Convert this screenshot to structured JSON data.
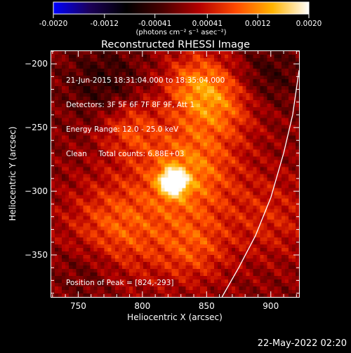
{
  "colorbar": {
    "ticks": [
      "-0.0020",
      "-0.0012",
      "-0.00041",
      "0.00041",
      "0.0012",
      "0.0020"
    ],
    "tick_values": [
      -0.002,
      -0.0012,
      -0.00041,
      0.00041,
      0.0012,
      0.002
    ],
    "units": "(photons cm⁻² s⁻¹ asec⁻²)",
    "colormap_stops": [
      "#0000ff",
      "#1b0058",
      "#000000",
      "#4a0000",
      "#b40000",
      "#ff4a00",
      "#ffb400",
      "#ffffff"
    ]
  },
  "chart_data": {
    "type": "heatmap",
    "title": "Reconstructed RHESSI Image",
    "xlabel": "Heliocentric X (arcsec)",
    "ylabel": "Heliocentric Y (arcsec)",
    "xlim": [
      729,
      922
    ],
    "ylim": [
      -383,
      -190
    ],
    "x_ticks": [
      750,
      800,
      850,
      900
    ],
    "y_ticks": [
      -200,
      -250,
      -300,
      -350
    ],
    "peak": {
      "x": 824,
      "y": -293,
      "value": 0.002
    },
    "limb_curve": [
      [
        862,
        -383
      ],
      [
        875,
        -360
      ],
      [
        888,
        -335
      ],
      [
        900,
        -305
      ],
      [
        910,
        -270
      ],
      [
        917,
        -240
      ],
      [
        922,
        -205
      ]
    ],
    "sources": [
      {
        "x": 824,
        "y": -293,
        "amp": 1.0,
        "sigma": 7
      },
      {
        "x": 835,
        "y": -285,
        "amp": 0.55,
        "sigma": 26
      },
      {
        "x": 860,
        "y": -230,
        "amp": 0.45,
        "sigma": 22
      },
      {
        "x": 840,
        "y": -215,
        "amp": 0.35,
        "sigma": 18
      },
      {
        "x": 790,
        "y": -250,
        "amp": 0.35,
        "sigma": 16
      },
      {
        "x": 780,
        "y": -330,
        "amp": 0.45,
        "sigma": 28
      },
      {
        "x": 840,
        "y": -345,
        "amp": 0.35,
        "sigma": 20
      },
      {
        "x": 770,
        "y": -215,
        "amp": -0.25,
        "sigma": 20
      },
      {
        "x": 760,
        "y": -360,
        "amp": -0.2,
        "sigma": 18
      },
      {
        "x": 895,
        "y": -210,
        "amp": -0.25,
        "sigma": 18
      },
      {
        "x": 900,
        "y": -320,
        "amp": 0.25,
        "sigma": 25
      }
    ]
  },
  "info": {
    "line1": "21-Jun-2015 18:31:04.000 to 18:35:04.000",
    "line2": "Detectors: 3F 5F 6F 7F 8F 9F, Att 1",
    "line3": "Energy Range: 12.0 - 25.0 keV",
    "line4": "Clean     Total counts: 6.88E+03"
  },
  "peak_label": "Position of Peak = [824,-293]",
  "footer_date": "22-May-2022 02:20"
}
